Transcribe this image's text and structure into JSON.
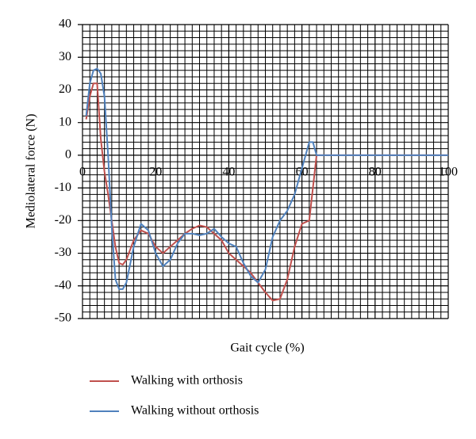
{
  "chart_data": {
    "type": "line",
    "y_label": "Mediolateral force (N)",
    "x_label": "Gait cycle (%)",
    "x": [
      1,
      2,
      3,
      4,
      5,
      6,
      7,
      8,
      9,
      10,
      11,
      12,
      14,
      16,
      18,
      20,
      22,
      24,
      26,
      28,
      30,
      32,
      34,
      36,
      38,
      40,
      42,
      44,
      46,
      48,
      50,
      52,
      54,
      56,
      58,
      60,
      61,
      62,
      63,
      64,
      100
    ],
    "series": [
      {
        "name": "Walking with orthosis",
        "color": "#c0504d",
        "values": [
          11,
          18,
          22,
          22,
          5,
          -5,
          -12,
          -20,
          -28,
          -33,
          -33.5,
          -32,
          -26,
          -23,
          -24,
          -28,
          -30,
          -28,
          -26,
          -24,
          -22.5,
          -21.5,
          -22,
          -24,
          -26,
          -30,
          -32,
          -34,
          -36,
          -39,
          -42,
          -44.5,
          -44,
          -38,
          -28,
          -21,
          -20.5,
          -20,
          -10,
          0,
          0
        ]
      },
      {
        "name": "Walking without orthosis",
        "color": "#4f81bd",
        "values": [
          12,
          22,
          26,
          26.5,
          25,
          18,
          0,
          -22,
          -38,
          -41,
          -41,
          -39,
          -28,
          -21,
          -23,
          -30,
          -34,
          -32,
          -27,
          -24,
          -24,
          -24.5,
          -24,
          -22.5,
          -25,
          -27,
          -28,
          -33,
          -37,
          -39,
          -35,
          -25,
          -20,
          -17,
          -12,
          -4,
          0,
          4,
          4,
          0,
          0
        ]
      }
    ],
    "xlim": [
      0,
      100
    ],
    "xticks": [
      0,
      20,
      40,
      60,
      80,
      100
    ],
    "ylim": [
      -50,
      40
    ],
    "yticks": [
      40,
      30,
      20,
      10,
      0,
      -10,
      -20,
      -30,
      -40,
      -50
    ],
    "grid": true,
    "minor_grid": 5
  }
}
